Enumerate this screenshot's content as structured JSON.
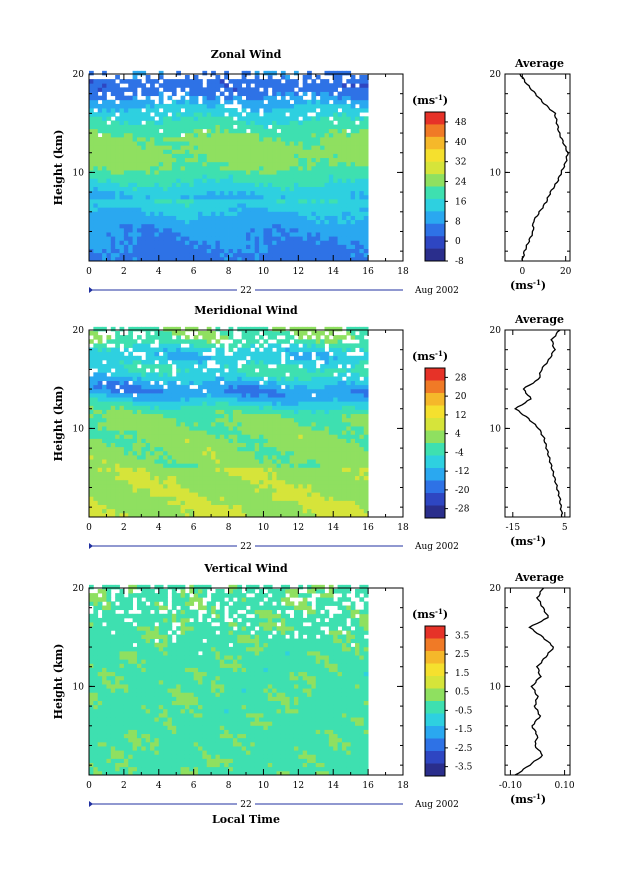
{
  "figure": {
    "xlabel": "Local Time",
    "date_label": "Aug 2002",
    "day_label": "22",
    "ylabel": "Height (km)",
    "unit_label": "(ms",
    "unit_sup": "-1",
    "average_title": "Average"
  },
  "chart_data": [
    {
      "type": "heatmap",
      "title": "Zonal Wind",
      "xlim": [
        0,
        18
      ],
      "x_ticks": [
        "0",
        "2",
        "4",
        "6",
        "8",
        "10",
        "12",
        "14",
        "16",
        "18"
      ],
      "ylim": [
        1,
        20
      ],
      "y_ticks": [
        "10",
        "20"
      ],
      "data_x_end": 16,
      "colorbar_ticks": [
        "-8",
        "0",
        "8",
        "16",
        "24",
        "32",
        "40",
        "48"
      ],
      "colorbar_range": [
        -8,
        52
      ],
      "profile": {
        "title": "Average",
        "xlim": [
          -8,
          22
        ],
        "x_ticks": [
          "0",
          "20"
        ],
        "heights": [
          1,
          2,
          3,
          4,
          5,
          6,
          7,
          8,
          9,
          10,
          11,
          12,
          13,
          14,
          15,
          16,
          17,
          18,
          19,
          20
        ],
        "values": [
          0,
          1,
          3,
          5,
          5,
          8,
          11,
          13,
          16,
          18,
          20,
          21,
          19,
          17,
          16,
          15,
          10,
          6,
          2,
          -1
        ]
      }
    },
    {
      "type": "heatmap",
      "title": "Meridional Wind",
      "xlim": [
        0,
        18
      ],
      "x_ticks": [
        "0",
        "2",
        "4",
        "6",
        "8",
        "10",
        "12",
        "14",
        "16",
        "18"
      ],
      "ylim": [
        1,
        20
      ],
      "y_ticks": [
        "10",
        "20"
      ],
      "data_x_end": 16,
      "colorbar_ticks": [
        "-28",
        "-20",
        "-12",
        "-4",
        "4",
        "12",
        "20",
        "28"
      ],
      "colorbar_range": [
        -32,
        32
      ],
      "profile": {
        "title": "Average",
        "xlim": [
          -18,
          7
        ],
        "x_ticks": [
          "-15",
          "5"
        ],
        "heights": [
          1,
          2,
          3,
          4,
          5,
          6,
          7,
          8,
          9,
          10,
          11,
          12,
          13,
          14,
          15,
          16,
          17,
          18,
          19,
          20
        ],
        "values": [
          4,
          3.5,
          3,
          2,
          1,
          0,
          -1,
          -2,
          -3,
          -5,
          -9,
          -14,
          -8,
          -11,
          -5,
          -4,
          -1,
          1,
          0,
          3
        ]
      }
    },
    {
      "type": "heatmap",
      "title": "Vertical Wind",
      "xlim": [
        0,
        18
      ],
      "x_ticks": [
        "0",
        "2",
        "4",
        "6",
        "8",
        "10",
        "12",
        "14",
        "16",
        "18"
      ],
      "ylim": [
        1,
        20
      ],
      "y_ticks": [
        "10",
        "20"
      ],
      "data_x_end": 16,
      "colorbar_ticks": [
        "-3.5",
        "-2.5",
        "-1.5",
        "-0.5",
        "0.5",
        "1.5",
        "2.5",
        "3.5"
      ],
      "colorbar_range": [
        -4,
        4
      ],
      "profile": {
        "title": "Average",
        "xlim": [
          -0.12,
          0.12
        ],
        "x_ticks": [
          "-0.10",
          "0.10"
        ],
        "heights": [
          1,
          2,
          3,
          4,
          5,
          6,
          7,
          8,
          9,
          10,
          11,
          12,
          13,
          14,
          15,
          16,
          17,
          18,
          19,
          20
        ],
        "values": [
          -0.08,
          -0.03,
          0.02,
          -0.01,
          0.0,
          -0.02,
          0.01,
          -0.01,
          0.0,
          -0.02,
          0.01,
          0.0,
          0.03,
          0.06,
          0.02,
          -0.03,
          0.04,
          0.02,
          0.0,
          0.02
        ]
      }
    }
  ]
}
